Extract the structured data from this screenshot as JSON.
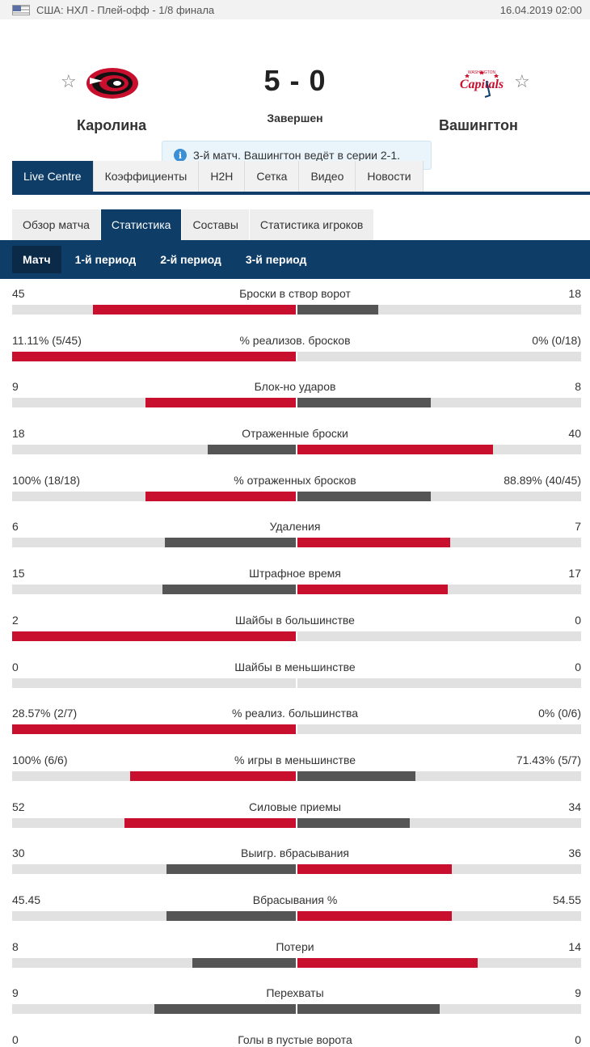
{
  "topbar": {
    "competition": "США: НХЛ - Плей-офф - 1/8 финала",
    "datetime": "16.04.2019 02:00"
  },
  "match": {
    "home": "Каролина",
    "away": "Вашингтон",
    "score": "5 - 0",
    "status": "Завершен",
    "info": "3-й матч. Вашингтон ведёт в серии 2-1.",
    "away_logo_text": "Capitals",
    "away_logo_small": "WASHINGTON"
  },
  "tabs_main": [
    "Live Centre",
    "Коэффициенты",
    "H2H",
    "Сетка",
    "Видео",
    "Новости"
  ],
  "tabs_sub": [
    "Обзор матча",
    "Статистика",
    "Составы",
    "Статистика игроков"
  ],
  "periods": [
    "Матч",
    "1-й период",
    "2-й период",
    "3-й период"
  ],
  "colors": {
    "accent": "#0e3d68",
    "winner": "#c8102e",
    "loser": "#555555",
    "track": "#e1e1e1"
  },
  "stats": [
    {
      "label": "Броски в створ ворот",
      "home": "45",
      "away": "18",
      "home_share": 0.714,
      "away_share": 0.286,
      "leader": "home"
    },
    {
      "label": "% реализов. бросков",
      "home": "11.11% (5/45)",
      "away": "0% (0/18)",
      "home_share": 1.0,
      "away_share": 0.0,
      "leader": "home"
    },
    {
      "label": "Блок-но ударов",
      "home": "9",
      "away": "8",
      "home_share": 0.529,
      "away_share": 0.471,
      "leader": "home"
    },
    {
      "label": "Отраженные броски",
      "home": "18",
      "away": "40",
      "home_share": 0.31,
      "away_share": 0.69,
      "leader": "away"
    },
    {
      "label": "% отраженных бросков",
      "home": "100% (18/18)",
      "away": "88.89% (40/45)",
      "home_share": 0.529,
      "away_share": 0.471,
      "leader": "home"
    },
    {
      "label": "Удаления",
      "home": "6",
      "away": "7",
      "home_share": 0.462,
      "away_share": 0.538,
      "leader": "away"
    },
    {
      "label": "Штрафное время",
      "home": "15",
      "away": "17",
      "home_share": 0.469,
      "away_share": 0.531,
      "leader": "away"
    },
    {
      "label": "Шайбы в большинстве",
      "home": "2",
      "away": "0",
      "home_share": 1.0,
      "away_share": 0.0,
      "leader": "home"
    },
    {
      "label": "Шайбы в меньшинстве",
      "home": "0",
      "away": "0",
      "home_share": 0.0,
      "away_share": 0.0,
      "leader": "none"
    },
    {
      "label": "% реализ. большинства",
      "home": "28.57% (2/7)",
      "away": "0% (0/6)",
      "home_share": 1.0,
      "away_share": 0.0,
      "leader": "home"
    },
    {
      "label": "% игры в меньшинстве",
      "home": "100% (6/6)",
      "away": "71.43% (5/7)",
      "home_share": 0.583,
      "away_share": 0.417,
      "leader": "home"
    },
    {
      "label": "Силовые приемы",
      "home": "52",
      "away": "34",
      "home_share": 0.605,
      "away_share": 0.395,
      "leader": "home"
    },
    {
      "label": "Выигр. вбрасывания",
      "home": "30",
      "away": "36",
      "home_share": 0.455,
      "away_share": 0.545,
      "leader": "away"
    },
    {
      "label": "Вбрасывания %",
      "home": "45.45",
      "away": "54.55",
      "home_share": 0.455,
      "away_share": 0.545,
      "leader": "away"
    },
    {
      "label": "Потери",
      "home": "8",
      "away": "14",
      "home_share": 0.364,
      "away_share": 0.636,
      "leader": "away"
    },
    {
      "label": "Перехваты",
      "home": "9",
      "away": "9",
      "home_share": 0.5,
      "away_share": 0.5,
      "leader": "none"
    },
    {
      "label": "Голы в пустые ворота",
      "home": "0",
      "away": "0",
      "home_share": 0.0,
      "away_share": 0.0,
      "leader": "none"
    }
  ]
}
